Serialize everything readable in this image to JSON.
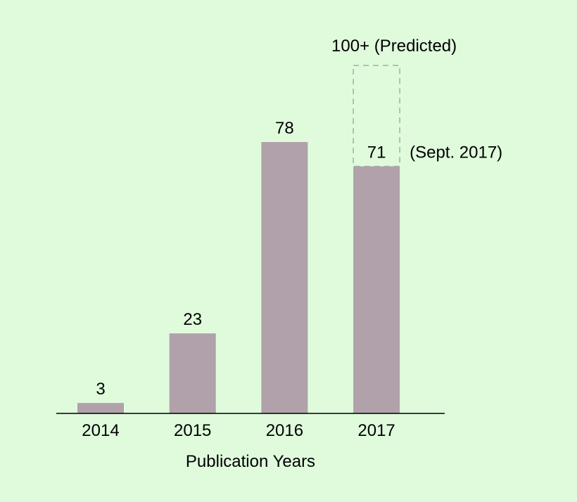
{
  "colors": {
    "background": "#dffbdc",
    "bar": "#b1a1aa",
    "predicted_outline": "#a9a9a9",
    "axis": "#000000"
  },
  "chart_data": {
    "type": "bar",
    "title": "",
    "xlabel": "Publication Years",
    "ylabel": "",
    "categories": [
      "2014",
      "2015",
      "2016",
      "2017"
    ],
    "values": [
      3,
      23,
      78,
      71
    ],
    "value_labels": [
      "3",
      "23",
      "78",
      "71"
    ],
    "ylim": [
      0,
      80
    ],
    "grid": false,
    "predicted": {
      "category": "2017",
      "value": 100,
      "label": "100+ (Predicted)"
    },
    "annotation": {
      "category": "2017",
      "text": "(Sept. 2017)"
    }
  }
}
